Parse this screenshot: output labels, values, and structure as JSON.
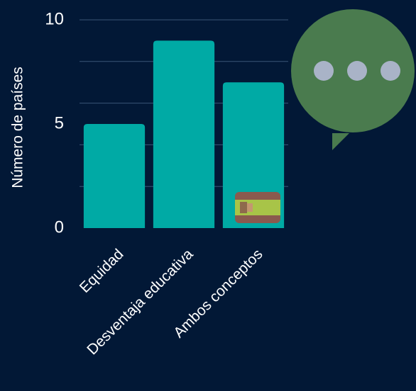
{
  "chart_data": {
    "type": "bar",
    "categories": [
      "Equidad",
      "Desventaja educativa",
      "Ambos conceptos"
    ],
    "values": [
      5,
      9,
      7
    ],
    "ylabel": "Número de países",
    "xlabel": "",
    "ylim": [
      0,
      10
    ],
    "yticks": [
      0,
      5,
      10
    ],
    "grid": true,
    "bar_color": "#00AAA5",
    "grid_color": "#3A5577",
    "marker": {
      "category": "Ambos conceptos",
      "icon": "spain-flag-icon"
    }
  },
  "chat_icon": {
    "icon": "speech-bubble-ellipsis-icon",
    "color": "#4A7B4E",
    "dot_color": "#A9B3C7"
  },
  "colors": {
    "background": "#021836",
    "text": "#FFFFFF"
  }
}
